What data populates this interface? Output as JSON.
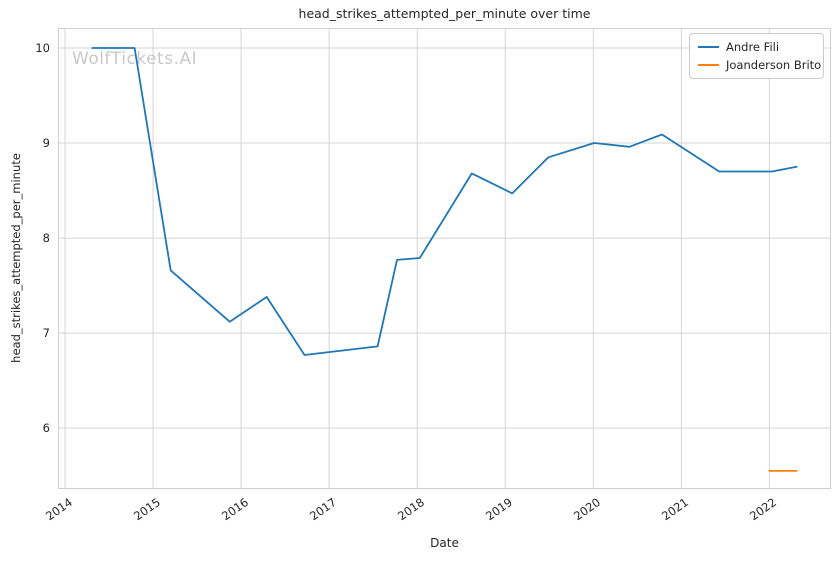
{
  "title": "head_strikes_attempted_per_minute over time",
  "watermark": "WolfTickets.AI",
  "axes": {
    "xlabel": "Date",
    "ylabel": "head_strikes_attempted_per_minute"
  },
  "legend": {
    "items": [
      {
        "label": "Andre Fili",
        "color": "#1f77b4"
      },
      {
        "label": "Joanderson Brito",
        "color": "#ff7f0e"
      }
    ]
  },
  "colors": {
    "background": "#ffffff",
    "grid": "#d4d4d4",
    "spine": "#cfcfcf",
    "text": "#262626",
    "watermark": "#c9c9c9",
    "series_blue": "#1f77b4",
    "series_orange": "#ff7f0e"
  },
  "chart_data": {
    "type": "line",
    "title": "head_strikes_attempted_per_minute over time",
    "xlabel": "Date",
    "ylabel": "head_strikes_attempted_per_minute",
    "xlim": [
      2013.92,
      2022.7
    ],
    "ylim": [
      5.36,
      10.21
    ],
    "x_ticks": [
      2014,
      2015,
      2016,
      2017,
      2018,
      2019,
      2020,
      2021,
      2022
    ],
    "x_tick_labels": [
      "2014",
      "2015",
      "2016",
      "2017",
      "2018",
      "2019",
      "2020",
      "2021",
      "2022"
    ],
    "y_ticks": [
      6,
      7,
      8,
      9,
      10
    ],
    "y_tick_labels": [
      "6",
      "7",
      "8",
      "9",
      "10"
    ],
    "grid": true,
    "legend_position": "upper right",
    "series": [
      {
        "name": "Andre Fili",
        "color": "#1f77b4",
        "x": [
          2014.31,
          2014.79,
          2015.2,
          2015.87,
          2016.29,
          2016.72,
          2017.55,
          2017.77,
          2018.03,
          2018.62,
          2019.08,
          2019.49,
          2020.01,
          2020.41,
          2020.78,
          2021.43,
          2022.03,
          2022.31
        ],
        "y": [
          10.0,
          10.0,
          7.66,
          7.12,
          7.38,
          6.77,
          6.86,
          7.77,
          7.79,
          8.68,
          8.47,
          8.85,
          9.0,
          8.96,
          9.09,
          8.7,
          8.7,
          8.75
        ]
      },
      {
        "name": "Joanderson Brito",
        "color": "#ff7f0e",
        "x": [
          2022.0,
          2022.31
        ],
        "y": [
          5.55,
          5.55
        ]
      }
    ]
  }
}
